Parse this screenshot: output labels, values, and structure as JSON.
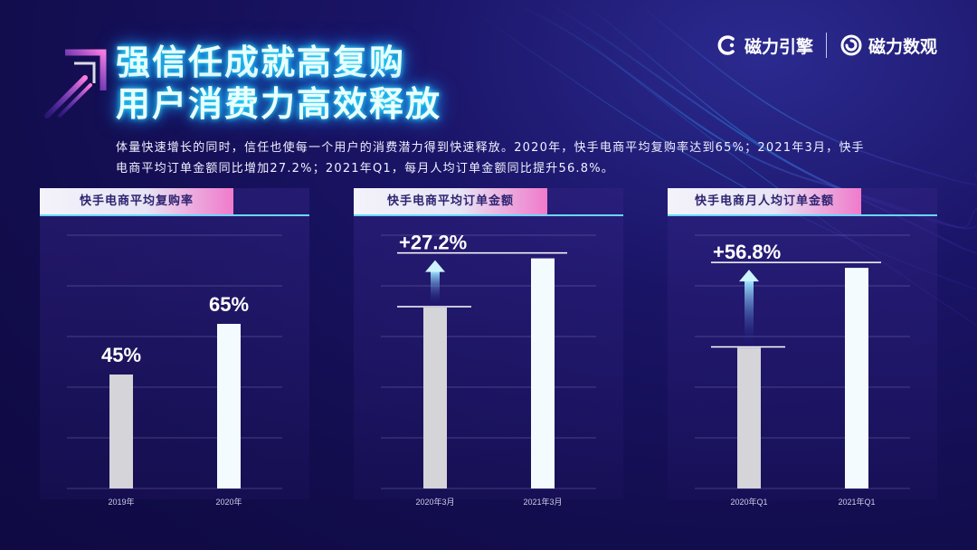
{
  "header": {
    "title_line1": "强信任成就高复购",
    "title_line2": "用户消费力高效释放",
    "description": "体量快速增长的同时，信任也使每一个用户的消费潜力得到快速释放。2020年，快手电商平均复购率达到65%；2021年3月，快手电商平均订单金额同比增加27.2%；2021年Q1，每月人均订单金额同比提升56.8%。"
  },
  "brands": [
    {
      "name": "磁力引擎",
      "icon": "c-logo-icon"
    },
    {
      "name": "磁力数观",
      "icon": "spiral-logo-icon"
    }
  ],
  "colors": {
    "bar_prev": "#d4d4d9",
    "bar_curr": "#f3fbff",
    "accent_cyan": "#69d8ff",
    "accent_pink": "#f07acb",
    "bg": "#140e55"
  },
  "chart_data": [
    {
      "type": "bar",
      "title": "快手电商平均复购率",
      "categories": [
        "2019年",
        "2020年"
      ],
      "values": [
        45,
        65
      ],
      "data_labels": [
        "45%",
        "65%"
      ],
      "ylim": [
        0,
        100
      ],
      "grid": true
    },
    {
      "type": "bar",
      "title": "快手电商平均订单金额",
      "categories": [
        "2020年3月",
        "2021年3月"
      ],
      "values": [
        100,
        127.2
      ],
      "annotation": "+27.2%",
      "ylim": [
        0,
        140
      ],
      "grid": true
    },
    {
      "type": "bar",
      "title": "快手电商月人均订单金额",
      "categories": [
        "2020年Q1",
        "2021年Q1"
      ],
      "values": [
        100,
        156.8
      ],
      "annotation": "+56.8%",
      "ylim": [
        0,
        180
      ],
      "grid": true
    }
  ]
}
